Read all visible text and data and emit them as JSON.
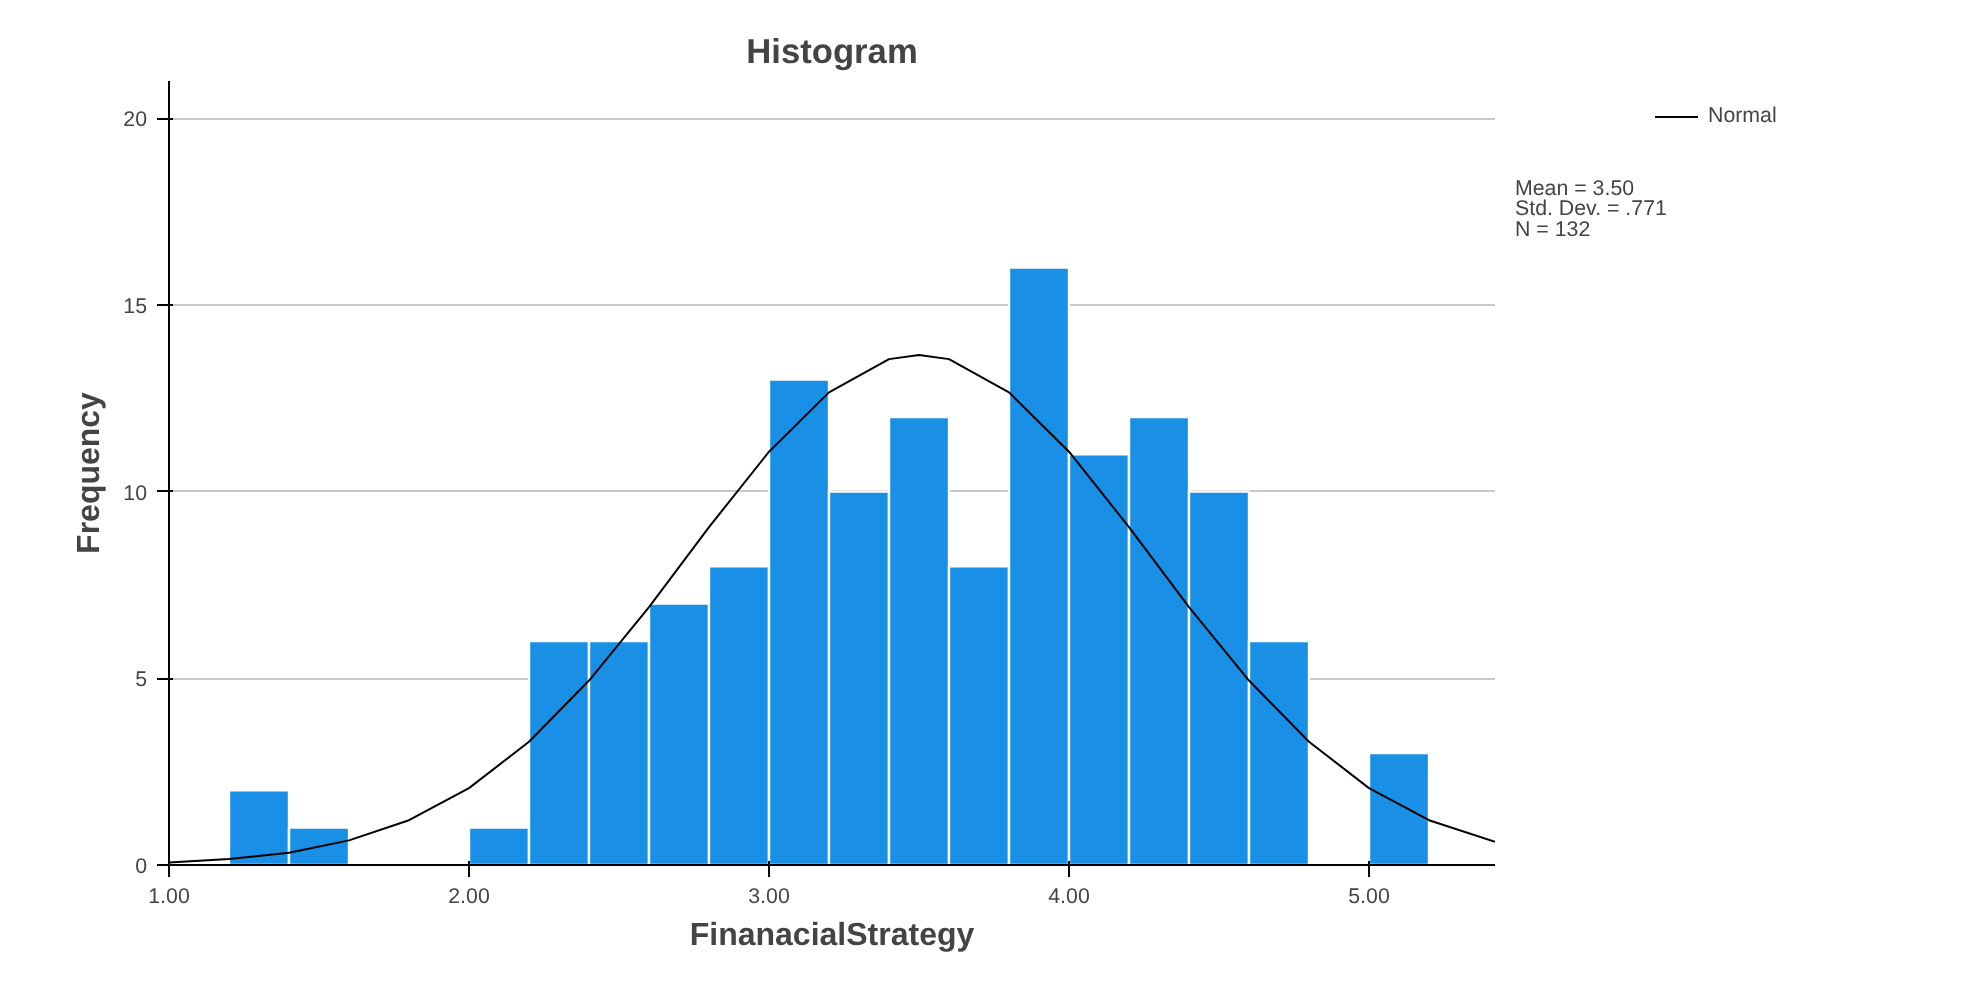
{
  "chart_data": {
    "type": "histogram",
    "title": "Histogram",
    "xlabel": "FinanacialStrategy",
    "ylabel": "Frequency",
    "bins": [
      1.2,
      1.4,
      1.6,
      1.8,
      2.0,
      2.2,
      2.4,
      2.6,
      2.8,
      3.0,
      3.2,
      3.4,
      3.6,
      3.8,
      4.0,
      4.2,
      4.4,
      4.6,
      4.8,
      5.0,
      5.2
    ],
    "series": [
      {
        "color": "#1a8fe6",
        "values": [
          2,
          1,
          0,
          0,
          1,
          6,
          6,
          7,
          8,
          13,
          10,
          12,
          8,
          16,
          11,
          12,
          10,
          6,
          0,
          3
        ]
      },
      {
        "type": "line",
        "name": "Normal",
        "color": "#000000",
        "x": [
          1.0,
          1.2,
          1.4,
          1.6,
          1.8,
          2.0,
          2.2,
          2.4,
          2.6,
          2.8,
          3.0,
          3.2,
          3.4,
          3.5,
          3.6,
          3.8,
          4.0,
          4.2,
          4.4,
          4.6,
          4.8,
          5.0,
          5.2,
          5.42
        ],
        "values": [
          0.07,
          0.16,
          0.33,
          0.66,
          1.2,
          2.06,
          3.3,
          4.94,
          6.91,
          9.05,
          11.07,
          12.66,
          13.55,
          13.66,
          13.55,
          12.66,
          11.07,
          9.05,
          6.91,
          4.94,
          3.3,
          2.06,
          1.2,
          0.62
        ]
      }
    ],
    "xlim": [
      1.0,
      5.42
    ],
    "ylim": [
      0,
      21
    ],
    "xticks": [
      {
        "value": 1,
        "label": "1.00"
      },
      {
        "value": 2,
        "label": "2.00"
      },
      {
        "value": 3,
        "label": "3.00"
      },
      {
        "value": 4,
        "label": "4.00"
      },
      {
        "value": 5,
        "label": "5.00"
      }
    ],
    "yticks": [
      0,
      5,
      10,
      15,
      20
    ],
    "grid": "y",
    "legend": "top right",
    "annotations": [
      "Mean = 3.50",
      "Std. Dev. = .771",
      "N = 132"
    ]
  }
}
